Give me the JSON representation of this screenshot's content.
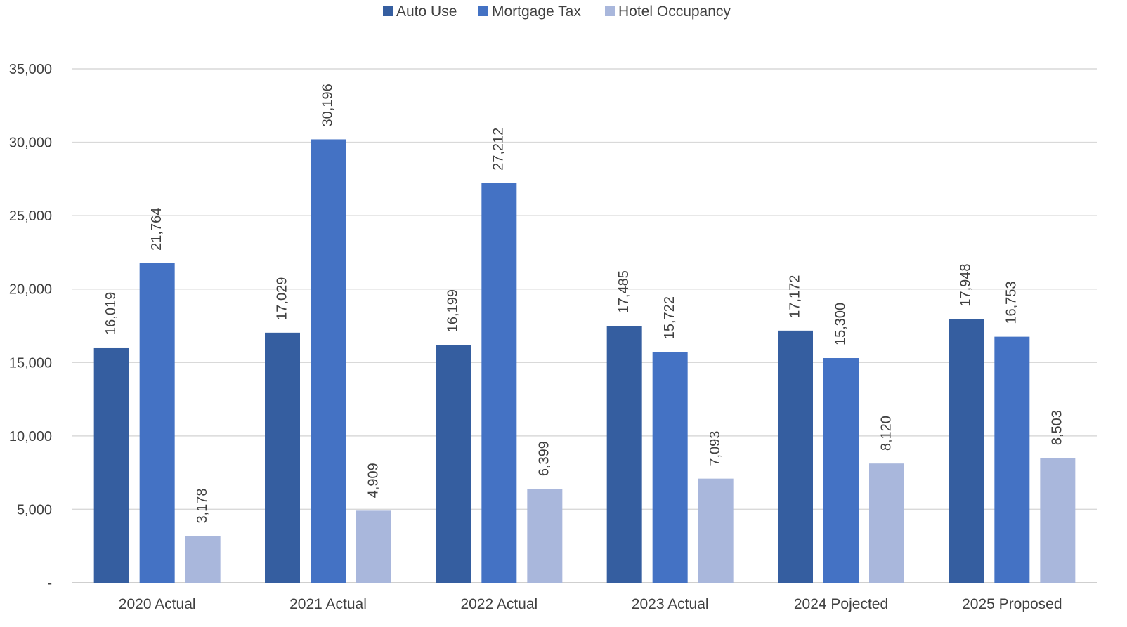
{
  "chart_data": {
    "type": "bar",
    "categories": [
      "2020 Actual",
      "2021 Actual",
      "2022 Actual",
      "2023 Actual",
      "2024 Pojected",
      "2025 Proposed"
    ],
    "series": [
      {
        "name": "Auto Use",
        "color": "#355ea0",
        "values": [
          16019,
          17029,
          16199,
          17485,
          17172,
          17948
        ]
      },
      {
        "name": "Mortgage Tax",
        "color": "#4472c4",
        "values": [
          21764,
          30196,
          27212,
          15722,
          15300,
          16753
        ]
      },
      {
        "name": "Hotel Occupancy",
        "color": "#a9b7dc",
        "values": [
          3178,
          4909,
          6399,
          7093,
          8120,
          8503
        ]
      }
    ],
    "ylim": [
      0,
      35000
    ],
    "y_ticks": [
      0,
      5000,
      10000,
      15000,
      20000,
      25000,
      30000,
      35000
    ],
    "y_tick_labels": [
      "-",
      "5,000",
      "10,000",
      "15,000",
      "20,000",
      "25,000",
      "30,000",
      "35,000"
    ],
    "legend_position": "top-center",
    "grid": true,
    "data_labels": true
  }
}
